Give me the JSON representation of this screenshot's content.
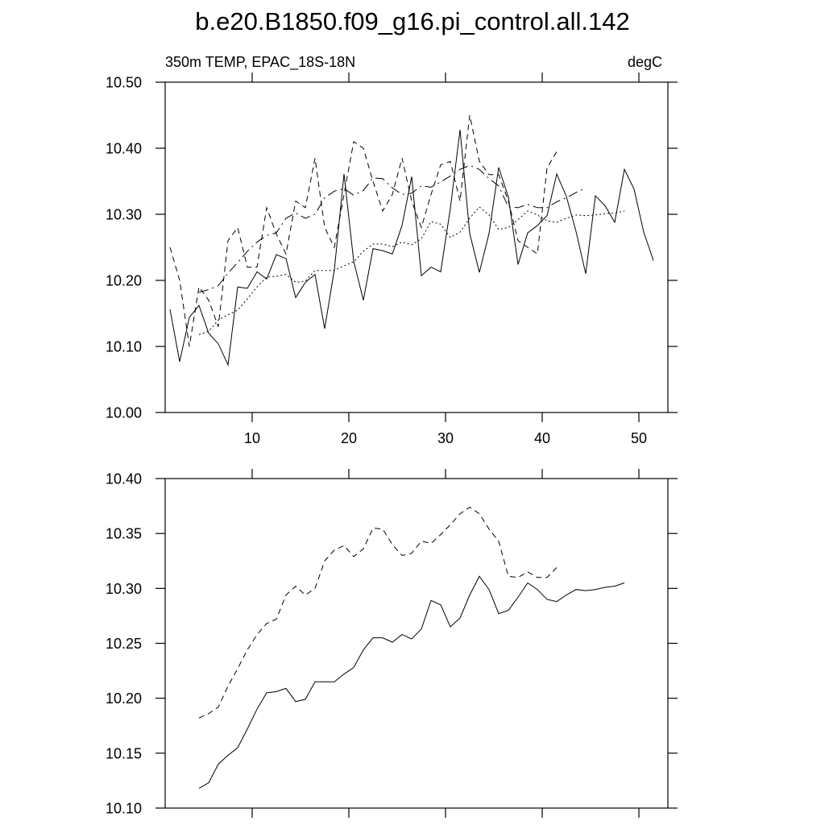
{
  "chart_data": [
    {
      "type": "line",
      "title": "b.e20.B1850.f09_g16.pi_control.all.142",
      "subtitle_left": "350m TEMP, EPAC_18S-18N",
      "subtitle_right": "degC",
      "x": [
        1.5,
        2.5,
        3.5,
        4.5,
        5.5,
        6.5,
        7.5,
        8.5,
        9.5,
        10.5,
        11.5,
        12.5,
        13.5,
        14.5,
        15.5,
        16.5,
        17.5,
        18.5,
        19.5,
        20.5,
        21.5,
        22.5,
        23.5,
        24.5,
        25.5,
        26.5,
        27.5,
        28.5,
        29.5,
        30.5,
        31.5,
        32.5,
        33.5,
        34.5,
        35.5,
        36.5,
        37.5,
        38.5,
        39.5,
        40.5,
        41.5,
        42.5,
        43.5,
        44.5,
        45.5,
        46.5,
        47.5,
        48.5,
        49.5,
        50.5,
        51.5
      ],
      "series": [
        {
          "color": "#000000",
          "dash": "solid",
          "values": [
            10.156,
            10.077,
            10.144,
            10.162,
            10.12,
            10.104,
            10.072,
            10.19,
            10.188,
            10.213,
            10.202,
            10.239,
            10.233,
            10.174,
            10.197,
            10.209,
            10.127,
            10.216,
            10.361,
            10.229,
            10.17,
            10.248,
            10.245,
            10.24,
            10.283,
            10.357,
            10.207,
            10.22,
            10.213,
            10.309,
            10.428,
            10.271,
            10.212,
            10.271,
            10.371,
            10.326,
            10.224,
            10.272,
            10.283,
            10.298,
            10.361,
            10.327,
            10.274,
            10.21,
            10.328,
            10.313,
            10.288,
            10.368,
            10.338,
            10.273,
            10.23
          ]
        },
        {
          "color": "#000000",
          "dash": "dash",
          "values": [
            10.25,
            10.2,
            10.1,
            10.19,
            10.17,
            10.13,
            10.26,
            10.28,
            10.22,
            10.22,
            10.31,
            10.27,
            10.24,
            10.32,
            10.31,
            10.385,
            10.28,
            10.25,
            10.33,
            10.41,
            10.4,
            10.35,
            10.305,
            10.33,
            10.385,
            10.32,
            10.28,
            10.33,
            10.375,
            10.38,
            10.32,
            10.45,
            10.38,
            10.36,
            10.36,
            10.32,
            10.26,
            10.25,
            10.24,
            10.37,
            10.395,
            null,
            null,
            null,
            null,
            null,
            null,
            null,
            null,
            null,
            null
          ]
        },
        {
          "color": "#000000",
          "dash": "dashdot",
          "values": [
            null,
            null,
            null,
            10.182,
            10.186,
            10.192,
            10.211,
            10.227,
            10.244,
            10.258,
            10.268,
            10.272,
            10.294,
            10.302,
            10.294,
            10.3,
            10.325,
            10.335,
            10.339,
            10.329,
            10.336,
            10.355,
            10.354,
            10.34,
            10.33,
            10.332,
            10.343,
            10.341,
            10.349,
            10.358,
            10.368,
            10.374,
            10.368,
            10.354,
            10.343,
            10.311,
            10.31,
            10.315,
            10.31,
            10.31,
            10.319,
            10.325,
            10.333,
            10.34,
            null,
            null,
            null,
            null,
            null,
            null,
            null
          ]
        },
        {
          "color": "#000000",
          "dash": "dot",
          "values": [
            null,
            null,
            null,
            10.118,
            10.123,
            10.14,
            10.148,
            10.155,
            10.172,
            10.19,
            10.205,
            10.206,
            10.209,
            10.197,
            10.199,
            10.215,
            10.215,
            10.215,
            10.222,
            10.228,
            10.244,
            10.255,
            10.255,
            10.251,
            10.258,
            10.254,
            10.263,
            10.289,
            10.285,
            10.265,
            10.273,
            10.294,
            10.311,
            10.299,
            10.277,
            10.28,
            10.292,
            10.305,
            10.299,
            10.29,
            10.288,
            10.294,
            10.299,
            10.298,
            10.299,
            10.301,
            10.302,
            10.305,
            null,
            null,
            null
          ]
        }
      ],
      "xlim": [
        1,
        53
      ],
      "xticks": [
        10,
        20,
        30,
        40,
        50
      ],
      "ylim": [
        10.0,
        10.5
      ],
      "yticks": [
        {
          "value": 10.0,
          "label": "10.00"
        },
        {
          "value": 10.1,
          "label": "10.10"
        },
        {
          "value": 10.2,
          "label": "10.20"
        },
        {
          "value": 10.3,
          "label": "10.30"
        },
        {
          "value": 10.4,
          "label": "10.40"
        },
        {
          "value": 10.5,
          "label": "10.50"
        }
      ]
    },
    {
      "type": "line",
      "x": [
        4.5,
        5.5,
        6.5,
        7.5,
        8.5,
        9.5,
        10.5,
        11.5,
        12.5,
        13.5,
        14.5,
        15.5,
        16.5,
        17.5,
        18.5,
        19.5,
        20.5,
        21.5,
        22.5,
        23.5,
        24.5,
        25.5,
        26.5,
        27.5,
        28.5,
        29.5,
        30.5,
        31.5,
        32.5,
        33.5,
        34.5,
        35.5,
        36.5,
        37.5,
        38.5,
        39.5,
        40.5,
        41.5,
        42.5,
        43.5,
        44.5,
        45.5,
        46.5,
        47.5,
        48.5
      ],
      "series": [
        {
          "color": "#000000",
          "dash": "solid",
          "values": [
            10.118,
            10.123,
            10.14,
            10.148,
            10.155,
            10.172,
            10.19,
            10.205,
            10.206,
            10.209,
            10.197,
            10.199,
            10.215,
            10.215,
            10.215,
            10.222,
            10.228,
            10.244,
            10.255,
            10.255,
            10.251,
            10.258,
            10.254,
            10.263,
            10.289,
            10.285,
            10.265,
            10.273,
            10.294,
            10.311,
            10.299,
            10.277,
            10.28,
            10.292,
            10.305,
            10.299,
            10.29,
            10.288,
            10.294,
            10.299,
            10.298,
            10.299,
            10.301,
            10.302,
            10.305
          ]
        },
        {
          "color": "#000000",
          "dash": "dash",
          "values": [
            10.182,
            10.186,
            10.192,
            10.211,
            10.227,
            10.244,
            10.258,
            10.268,
            10.272,
            10.294,
            10.302,
            10.294,
            10.3,
            10.325,
            10.335,
            10.339,
            10.329,
            10.336,
            10.355,
            10.354,
            10.34,
            10.33,
            10.332,
            10.343,
            10.341,
            10.349,
            10.358,
            10.368,
            10.374,
            10.368,
            10.354,
            10.343,
            10.311,
            10.31,
            10.315,
            10.31,
            10.31,
            10.319,
            null,
            null,
            null,
            null,
            null,
            null,
            null
          ]
        }
      ],
      "xlim": [
        1,
        53
      ],
      "xticks": [
        10,
        20,
        30,
        40,
        50
      ],
      "ylim": [
        10.1,
        10.4
      ],
      "yticks": [
        {
          "value": 10.1,
          "label": "10.10"
        },
        {
          "value": 10.15,
          "label": "10.15"
        },
        {
          "value": 10.2,
          "label": "10.20"
        },
        {
          "value": 10.25,
          "label": "10.25"
        },
        {
          "value": 10.3,
          "label": "10.30"
        },
        {
          "value": 10.35,
          "label": "10.35"
        },
        {
          "value": 10.4,
          "label": "10.40"
        }
      ]
    }
  ]
}
